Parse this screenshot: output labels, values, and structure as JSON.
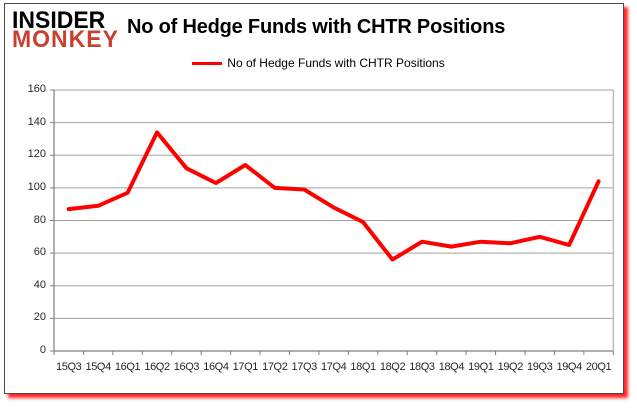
{
  "logo": {
    "line1": "INSIDER",
    "line2": "MONKEY",
    "line1_color": "#000000",
    "line2_color": "#c9402f"
  },
  "header": {
    "title": "No of Hedge Funds with CHTR Positions"
  },
  "legend": {
    "label": "No of Hedge Funds with CHTR Positions",
    "line_color": "#ff0000"
  },
  "chart_data": {
    "type": "line",
    "title": "No of Hedge Funds with CHTR Positions",
    "categories": [
      "15Q3",
      "15Q4",
      "16Q1",
      "16Q2",
      "16Q3",
      "16Q4",
      "17Q1",
      "17Q2",
      "17Q3",
      "17Q4",
      "18Q1",
      "18Q2",
      "18Q3",
      "18Q4",
      "19Q1",
      "19Q2",
      "19Q3",
      "19Q4",
      "20Q1"
    ],
    "series": [
      {
        "name": "No of Hedge Funds with CHTR Positions",
        "color": "#ff0000",
        "values": [
          87,
          89,
          97,
          134,
          112,
          103,
          114,
          100,
          99,
          88,
          79,
          56,
          67,
          64,
          67,
          66,
          70,
          65,
          104
        ]
      }
    ],
    "xlabel": "",
    "ylabel": "",
    "ylim": [
      0,
      160
    ],
    "yticks": [
      0,
      20,
      40,
      60,
      80,
      100,
      120,
      140,
      160
    ],
    "grid": true,
    "legend_position": "top-center",
    "colors": {
      "gridline": "#a3a3a3",
      "axis": "#7f7f7f",
      "tick": "#7f7f7f",
      "tick_label": "#262626"
    }
  }
}
